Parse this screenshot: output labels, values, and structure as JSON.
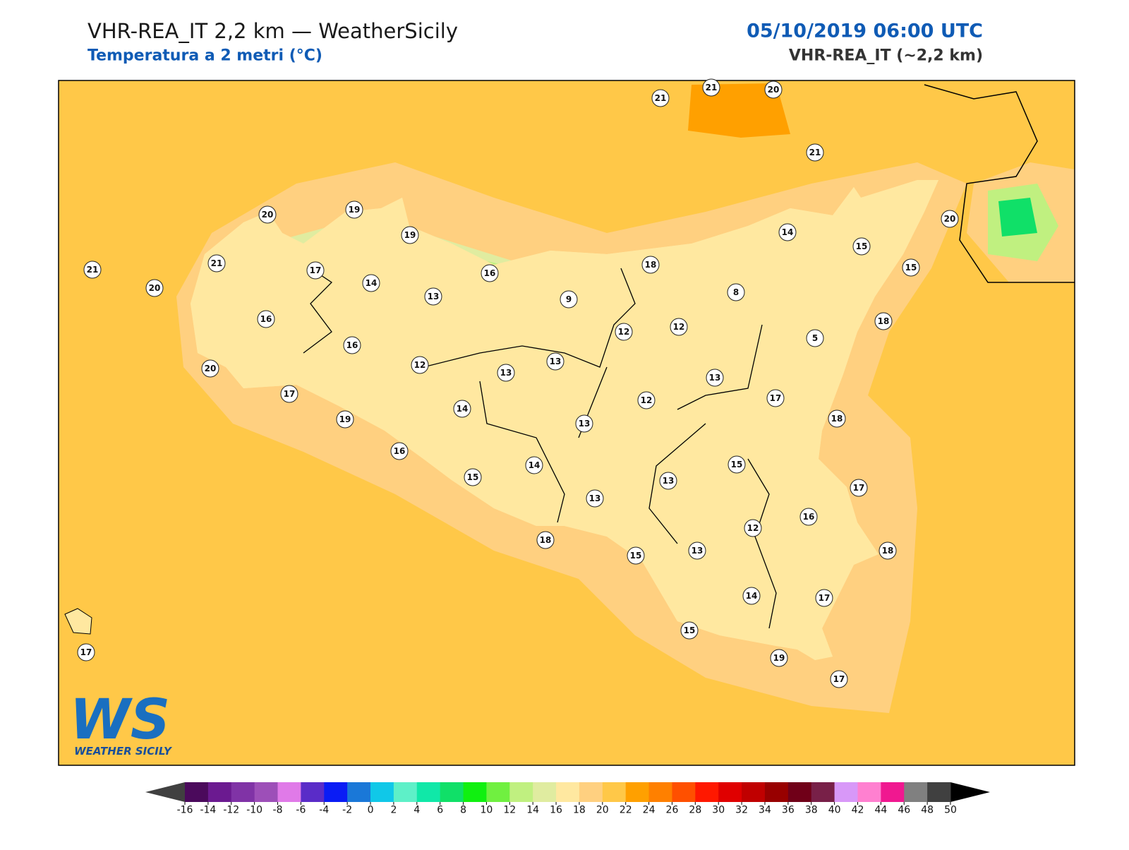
{
  "header": {
    "title": "VHR-REA_IT 2,2 km — WeatherSicily",
    "subtitle": "Temperatura a 2 metri (°C)",
    "date": "05/10/2019 06:00 UTC",
    "model": "VHR-REA_IT (~2,2 km)"
  },
  "logo": {
    "mark": "WS",
    "name": "WEATHER SICILY"
  },
  "stations": [
    21,
    21,
    20,
    21,
    21,
    20,
    21,
    20,
    19,
    19,
    17,
    14,
    13,
    16,
    9,
    18,
    14,
    15,
    20,
    15,
    8,
    12,
    12,
    5,
    18,
    16,
    16,
    20,
    12,
    13,
    13,
    13,
    17,
    17,
    19,
    14,
    13,
    12,
    18,
    16,
    15,
    14,
    13,
    13,
    15,
    17,
    12,
    16,
    18,
    15,
    13,
    18,
    14,
    17,
    15,
    19,
    17,
    17
  ],
  "colorbar": {
    "ticks": [
      -16,
      -14,
      -12,
      -10,
      -8,
      -6,
      -4,
      -2,
      0,
      2,
      4,
      6,
      8,
      10,
      12,
      14,
      16,
      18,
      20,
      22,
      24,
      26,
      28,
      30,
      32,
      34,
      36,
      38,
      40,
      42,
      44,
      46,
      48,
      50
    ],
    "colors": [
      "#4b0a5c",
      "#6b1a90",
      "#8033a6",
      "#9d4fb8",
      "#e07ae8",
      "#5a2cc8",
      "#0a1cf5",
      "#1a78d8",
      "#10c8e8",
      "#5ef0c8",
      "#10e8a8",
      "#10e068",
      "#10f010",
      "#70f040",
      "#c0f080",
      "#e0eca0",
      "#ffe8a0",
      "#ffd080",
      "#ffc848",
      "#ffa000",
      "#ff8000",
      "#ff5000",
      "#ff1800",
      "#e00000",
      "#c00000",
      "#980000",
      "#700018",
      "#782048",
      "#d898f8",
      "#ff80d0",
      "#f01890",
      "#808080",
      "#404040"
    ],
    "under_color": "#404040",
    "over_color": "#000000"
  }
}
